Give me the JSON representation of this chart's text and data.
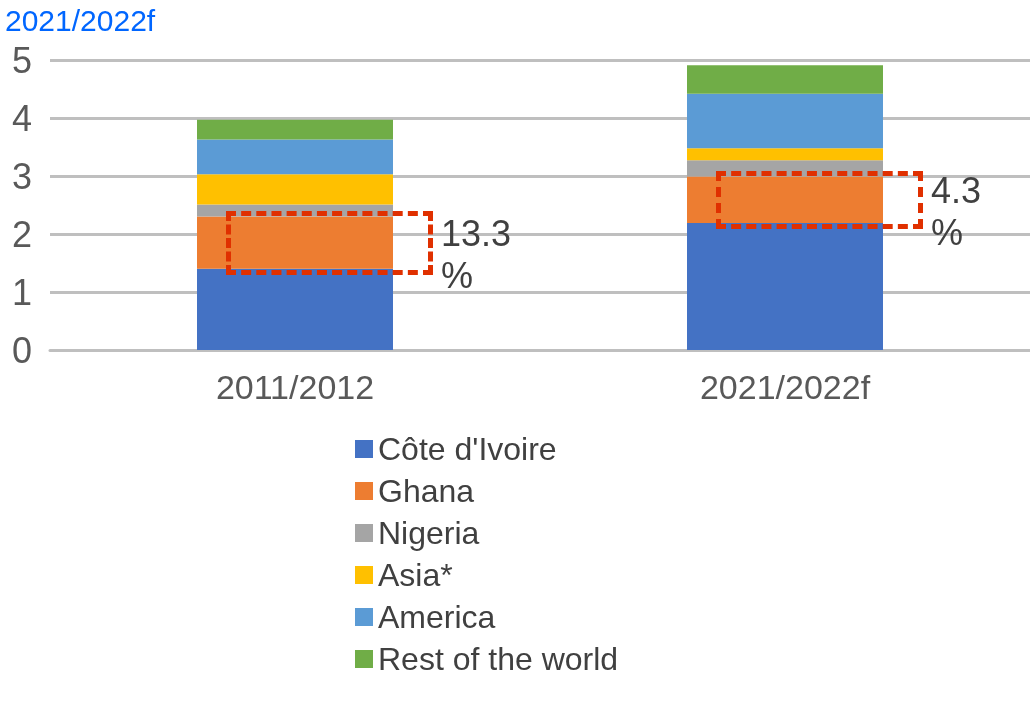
{
  "chart_data": {
    "type": "bar",
    "title": "2021/2022f",
    "categories": [
      "2011/2012",
      "2021/2022f"
    ],
    "series": [
      {
        "name": "Côte d'Ivoire",
        "color": "#4472c4",
        "values": [
          1.4,
          2.19
        ]
      },
      {
        "name": "Ghana",
        "color": "#ed7d31",
        "values": [
          0.9,
          0.8
        ]
      },
      {
        "name": "Nigeria",
        "color": "#a5a5a5",
        "values": [
          0.21,
          0.28
        ]
      },
      {
        "name": "Asia*",
        "color": "#ffc000",
        "values": [
          0.52,
          0.21
        ]
      },
      {
        "name": "America",
        "color": "#5b9bd5",
        "values": [
          0.6,
          0.94
        ]
      },
      {
        "name": "Rest of the world",
        "color": "#70ad47",
        "values": [
          0.34,
          0.49
        ]
      }
    ],
    "stacked": true,
    "ylim": [
      0,
      5
    ],
    "yticks": [
      0,
      1,
      2,
      3,
      4,
      5
    ],
    "grid": "y",
    "legend": "bottom",
    "annotations": [
      "13.3 %",
      "4.3 %"
    ]
  }
}
